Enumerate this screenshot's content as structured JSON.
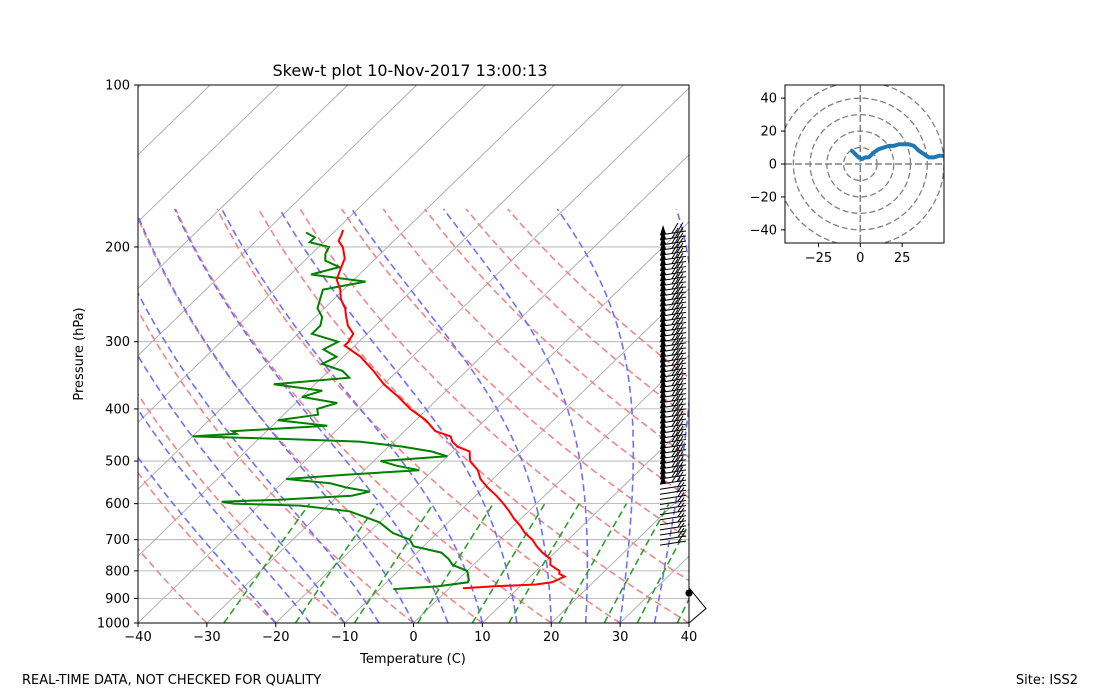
{
  "footer": {
    "left": "REAL-TIME DATA, NOT CHECKED FOR QUALITY",
    "right": "Site: ISS2"
  },
  "colors": {
    "temperature": "#ff0000",
    "dewpoint": "#008000",
    "dry_adiabat": "#f08080",
    "moist_adiabat": "#6f6fff",
    "mixing_ratio": "#2ca02c",
    "isotherm": "#aaaaaa",
    "hodograph": "#1f77b4"
  },
  "chart_data": [
    {
      "type": "line",
      "title": "Skew-t plot 10-Nov-2017 13:00:13",
      "xlabel": "Temperature (C)",
      "ylabel": "Pressure (hPa)",
      "xlim": [
        -40,
        40
      ],
      "ylim": [
        1000,
        100
      ],
      "y_scale": "log",
      "x_ticks": [
        -40,
        -30,
        -20,
        -10,
        0,
        10,
        20,
        30,
        40
      ],
      "x_tick_labels": [
        "−40",
        "−30",
        "−20",
        "−10",
        "0",
        "10",
        "20",
        "30",
        "40"
      ],
      "y_ticks": [
        1000,
        900,
        800,
        700,
        600,
        500,
        400,
        300,
        200,
        100
      ],
      "y_tick_labels": [
        "1000",
        "900",
        "800",
        "700",
        "600",
        "500",
        "400",
        "300",
        "200",
        "100"
      ],
      "grid": true,
      "series": [
        {
          "role": "temperature",
          "pressure": [
            862,
            855,
            848,
            840,
            830,
            820,
            810,
            800,
            780,
            760,
            740,
            720,
            700,
            680,
            660,
            640,
            620,
            600,
            580,
            560,
            540,
            520,
            500,
            480,
            470,
            460,
            450,
            440,
            420,
            400,
            380,
            360,
            340,
            320,
            305,
            300,
            290,
            280,
            270,
            260,
            250,
            240,
            230,
            220,
            210,
            200,
            195,
            190,
            186
          ],
          "temperature": [
            2,
            6,
            12,
            14,
            14.5,
            15,
            13.8,
            13.4,
            11.2,
            10.3,
            8.2,
            6.4,
            4.8,
            2.7,
            1,
            -1,
            -2.8,
            -4.8,
            -7,
            -9.5,
            -11.8,
            -13.5,
            -16,
            -17.5,
            -20,
            -21.5,
            -22.5,
            -25.5,
            -28.5,
            -32.5,
            -36,
            -40,
            -43.5,
            -47.5,
            -51.5,
            -51.5,
            -52,
            -54,
            -55.5,
            -57,
            -59,
            -60.5,
            -62.5,
            -63.5,
            -64.5,
            -66.5,
            -68,
            -68.5,
            -69
          ]
        },
        {
          "role": "dewpoint",
          "pressure": [
            865,
            855,
            840,
            830,
            815,
            800,
            780,
            760,
            740,
            720,
            700,
            680,
            650,
            620,
            605,
            600,
            595,
            590,
            580,
            570,
            560,
            550,
            540,
            530,
            520,
            510,
            500,
            490,
            480,
            470,
            460,
            455,
            450,
            445,
            440,
            430,
            420,
            410,
            400,
            390,
            380,
            370,
            360,
            350,
            340,
            330,
            320,
            310,
            300,
            290,
            280,
            270,
            260,
            250,
            240,
            232,
            225,
            218,
            212,
            206,
            200,
            196,
            192,
            188
          ],
          "dewpoint": [
            -8,
            -2,
            1.8,
            1.5,
            0.8,
            0,
            -3,
            -4.5,
            -6.5,
            -11.5,
            -13,
            -16.5,
            -20,
            -26,
            -34,
            -44,
            -46,
            -38,
            -28,
            -26,
            -30,
            -33,
            -40,
            -32,
            -22,
            -26,
            -29,
            -20,
            -23,
            -28,
            -35,
            -46,
            -60,
            -54,
            -55,
            -42,
            -50,
            -45,
            -46,
            -44,
            -50,
            -48,
            -56,
            -46,
            -48,
            -52,
            -51,
            -54,
            -53,
            -58,
            -58,
            -59,
            -61,
            -62,
            -63,
            -58,
            -67,
            -64,
            -67,
            -68,
            -68.5,
            -72,
            -72,
            -74
          ]
        }
      ],
      "hodograph": {
        "xlim": [
          -45,
          50
        ],
        "ylim": [
          -48,
          48
        ],
        "x_ticks": [
          -25,
          0,
          25
        ],
        "x_tick_labels": [
          "−25",
          "0",
          "25"
        ],
        "y_ticks": [
          -40,
          -20,
          0,
          20,
          40
        ],
        "y_tick_labels": [
          "−40",
          "−20",
          "0",
          "20",
          "40"
        ],
        "rings": [
          10,
          20,
          30,
          40,
          50
        ],
        "u": [
          -5,
          -3,
          -1,
          1,
          3,
          5,
          8,
          11,
          14,
          17,
          20,
          23,
          26,
          29,
          32,
          35,
          38,
          41,
          44,
          47,
          50
        ],
        "v": [
          8,
          6,
          4,
          3,
          4,
          4,
          7,
          9,
          10,
          11,
          11,
          12,
          12,
          12,
          11,
          8,
          6,
          4,
          4,
          5,
          5
        ]
      }
    }
  ]
}
